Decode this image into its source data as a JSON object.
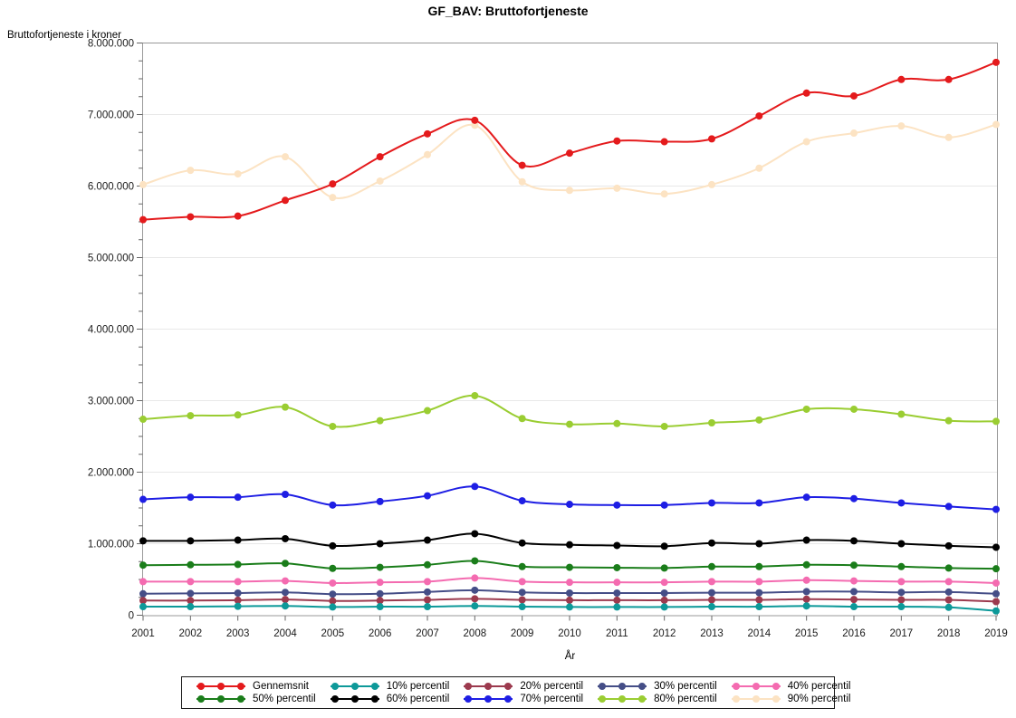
{
  "chart_data": {
    "type": "line",
    "title": "GF_BAV: Bruttofortjeneste",
    "ylabel": "Bruttofortjeneste i kroner",
    "xlabel": "År",
    "x": [
      2001,
      2002,
      2003,
      2004,
      2005,
      2006,
      2007,
      2008,
      2009,
      2010,
      2011,
      2012,
      2013,
      2014,
      2015,
      2016,
      2017,
      2018,
      2019
    ],
    "ylim": [
      0,
      8000000
    ],
    "ytick_step": 1000000,
    "yminor_step": 250000,
    "grid": "horizontal-major-gridlines",
    "legend_position": "bottom",
    "marker": "circle",
    "series": [
      {
        "name": "Gennemsnit",
        "color": "#e41a1c",
        "values": [
          5530000,
          5570000,
          5580000,
          5800000,
          6030000,
          6410000,
          6730000,
          6920000,
          6290000,
          6460000,
          6630000,
          6620000,
          6660000,
          6980000,
          7300000,
          7260000,
          7490000,
          7490000,
          7730000
        ]
      },
      {
        "name": "10% percentil",
        "color": "#0d9999",
        "values": [
          120000,
          120000,
          125000,
          130000,
          115000,
          120000,
          120000,
          130000,
          120000,
          115000,
          115000,
          115000,
          120000,
          120000,
          130000,
          120000,
          120000,
          110000,
          60000
        ]
      },
      {
        "name": "20% percentil",
        "color": "#9c3a4e",
        "values": [
          205000,
          205000,
          210000,
          220000,
          200000,
          205000,
          215000,
          230000,
          215000,
          210000,
          210000,
          210000,
          215000,
          215000,
          225000,
          220000,
          215000,
          215000,
          190000
        ]
      },
      {
        "name": "30% percentil",
        "color": "#454e87",
        "values": [
          300000,
          305000,
          310000,
          320000,
          295000,
          300000,
          325000,
          350000,
          320000,
          310000,
          310000,
          310000,
          315000,
          315000,
          330000,
          330000,
          320000,
          325000,
          300000
        ]
      },
      {
        "name": "40% percentil",
        "color": "#f46bb0",
        "values": [
          470000,
          470000,
          470000,
          480000,
          450000,
          460000,
          470000,
          520000,
          470000,
          460000,
          460000,
          460000,
          470000,
          470000,
          490000,
          480000,
          470000,
          470000,
          450000
        ]
      },
      {
        "name": "50% percentil",
        "color": "#1a7d1a",
        "values": [
          700000,
          705000,
          710000,
          725000,
          655000,
          670000,
          705000,
          760000,
          680000,
          670000,
          665000,
          660000,
          680000,
          680000,
          705000,
          700000,
          680000,
          660000,
          650000
        ]
      },
      {
        "name": "60% percentil",
        "color": "#000000",
        "values": [
          1040000,
          1040000,
          1050000,
          1070000,
          970000,
          1000000,
          1050000,
          1140000,
          1010000,
          985000,
          975000,
          965000,
          1010000,
          1000000,
          1050000,
          1040000,
          1000000,
          970000,
          950000
        ]
      },
      {
        "name": "70% percentil",
        "color": "#1e1ee4",
        "values": [
          1620000,
          1650000,
          1650000,
          1690000,
          1540000,
          1590000,
          1670000,
          1800000,
          1600000,
          1550000,
          1540000,
          1540000,
          1570000,
          1570000,
          1650000,
          1630000,
          1570000,
          1520000,
          1480000
        ]
      },
      {
        "name": "80% percentil",
        "color": "#9acd32",
        "values": [
          2740000,
          2790000,
          2800000,
          2910000,
          2640000,
          2720000,
          2860000,
          3070000,
          2750000,
          2670000,
          2680000,
          2640000,
          2690000,
          2730000,
          2880000,
          2880000,
          2810000,
          2720000,
          2710000
        ]
      },
      {
        "name": "90% percentil",
        "color": "#fce3c3",
        "values": [
          6020000,
          6220000,
          6170000,
          6410000,
          5840000,
          6070000,
          6440000,
          6850000,
          6060000,
          5940000,
          5970000,
          5890000,
          6020000,
          6250000,
          6620000,
          6740000,
          6840000,
          6680000,
          6860000
        ]
      }
    ],
    "style": {
      "frame_color": "#999999",
      "gridline_color": "#e8e8e8",
      "tick_color": "#666666",
      "tick_label_color": "#1a1a1a"
    }
  }
}
